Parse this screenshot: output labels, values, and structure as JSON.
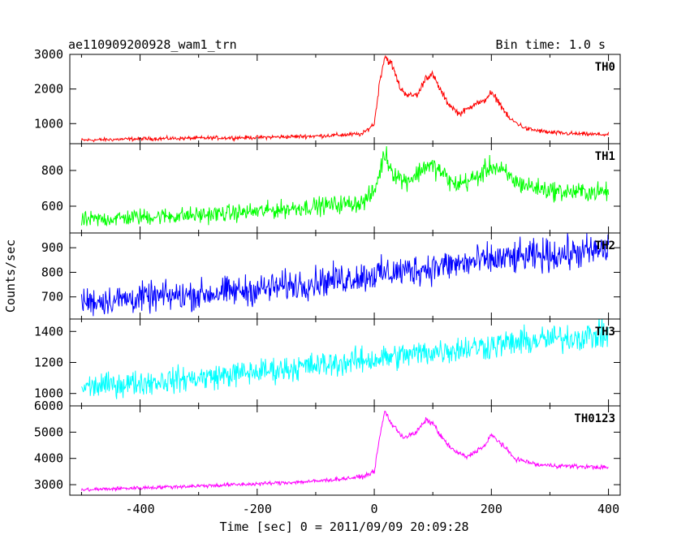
{
  "header": {
    "left": "ae110909200928_wam1_trn",
    "right": "Bin time: 1.0 s"
  },
  "chart_data": {
    "type": "line",
    "title": "ae110909200928_wam1_trn",
    "bin_time": "Bin time: 1.0 s",
    "xlabel": "Time [sec] 0 = 2011/09/09 20:09:28",
    "ylabel": "Counts/sec",
    "xlim": [
      -520,
      420
    ],
    "xticks": [
      -400,
      -200,
      0,
      200,
      400
    ],
    "grid": false,
    "panels": [
      {
        "name": "TH0",
        "color": "#ff0000",
        "ylim": [
          420,
          3000
        ],
        "yticks": [
          1000,
          2000,
          3000
        ],
        "noise": 40,
        "points": [
          [
            -500,
            520
          ],
          [
            -400,
            560
          ],
          [
            -300,
            580
          ],
          [
            -200,
            600
          ],
          [
            -100,
            640
          ],
          [
            -20,
            700
          ],
          [
            0,
            1000
          ],
          [
            10,
            2300
          ],
          [
            18,
            2950
          ],
          [
            30,
            2700
          ],
          [
            45,
            2000
          ],
          [
            60,
            1800
          ],
          [
            75,
            1850
          ],
          [
            88,
            2350
          ],
          [
            100,
            2400
          ],
          [
            112,
            2000
          ],
          [
            125,
            1600
          ],
          [
            145,
            1280
          ],
          [
            162,
            1450
          ],
          [
            172,
            1600
          ],
          [
            185,
            1600
          ],
          [
            198,
            1880
          ],
          [
            210,
            1700
          ],
          [
            230,
            1150
          ],
          [
            260,
            850
          ],
          [
            300,
            740
          ],
          [
            350,
            700
          ],
          [
            400,
            680
          ]
        ]
      },
      {
        "name": "TH1",
        "color": "#00ff00",
        "ylim": [
          450,
          950
        ],
        "yticks": [
          600,
          800
        ],
        "noise": 35,
        "points": [
          [
            -500,
            520
          ],
          [
            -400,
            540
          ],
          [
            -300,
            550
          ],
          [
            -200,
            570
          ],
          [
            -100,
            600
          ],
          [
            -20,
            620
          ],
          [
            0,
            680
          ],
          [
            10,
            800
          ],
          [
            18,
            900
          ],
          [
            30,
            800
          ],
          [
            50,
            740
          ],
          [
            70,
            770
          ],
          [
            88,
            830
          ],
          [
            100,
            820
          ],
          [
            115,
            790
          ],
          [
            135,
            720
          ],
          [
            160,
            740
          ],
          [
            180,
            770
          ],
          [
            200,
            830
          ],
          [
            220,
            790
          ],
          [
            245,
            730
          ],
          [
            280,
            700
          ],
          [
            320,
            680
          ],
          [
            360,
            680
          ],
          [
            400,
            680
          ]
        ]
      },
      {
        "name": "TH2",
        "color": "#0000ff",
        "ylim": [
          610,
          960
        ],
        "yticks": [
          700,
          800,
          900
        ],
        "noise": 45,
        "points": [
          [
            -500,
            680
          ],
          [
            -400,
            695
          ],
          [
            -300,
            710
          ],
          [
            -200,
            730
          ],
          [
            -100,
            760
          ],
          [
            0,
            790
          ],
          [
            100,
            820
          ],
          [
            200,
            850
          ],
          [
            300,
            870
          ],
          [
            400,
            890
          ]
        ]
      },
      {
        "name": "TH3",
        "color": "#00ffff",
        "ylim": [
          920,
          1480
        ],
        "yticks": [
          1000,
          1200,
          1400
        ],
        "noise": 60,
        "points": [
          [
            -500,
            1040
          ],
          [
            -400,
            1070
          ],
          [
            -300,
            1100
          ],
          [
            -200,
            1140
          ],
          [
            -100,
            1180
          ],
          [
            0,
            1220
          ],
          [
            100,
            1270
          ],
          [
            200,
            1310
          ],
          [
            300,
            1350
          ],
          [
            400,
            1380
          ]
        ]
      },
      {
        "name": "TH0123",
        "color": "#ff00ff",
        "ylim": [
          2600,
          6000
        ],
        "yticks": [
          3000,
          4000,
          5000,
          6000
        ],
        "noise": 55,
        "points": [
          [
            -500,
            2800
          ],
          [
            -400,
            2880
          ],
          [
            -300,
            2950
          ],
          [
            -200,
            3030
          ],
          [
            -100,
            3130
          ],
          [
            -20,
            3300
          ],
          [
            0,
            3500
          ],
          [
            10,
            4900
          ],
          [
            18,
            5800
          ],
          [
            30,
            5300
          ],
          [
            50,
            4800
          ],
          [
            70,
            4950
          ],
          [
            88,
            5450
          ],
          [
            100,
            5350
          ],
          [
            115,
            4800
          ],
          [
            135,
            4300
          ],
          [
            158,
            4050
          ],
          [
            175,
            4300
          ],
          [
            190,
            4500
          ],
          [
            200,
            4900
          ],
          [
            215,
            4600
          ],
          [
            240,
            4000
          ],
          [
            280,
            3750
          ],
          [
            340,
            3700
          ],
          [
            400,
            3650
          ]
        ]
      }
    ]
  }
}
